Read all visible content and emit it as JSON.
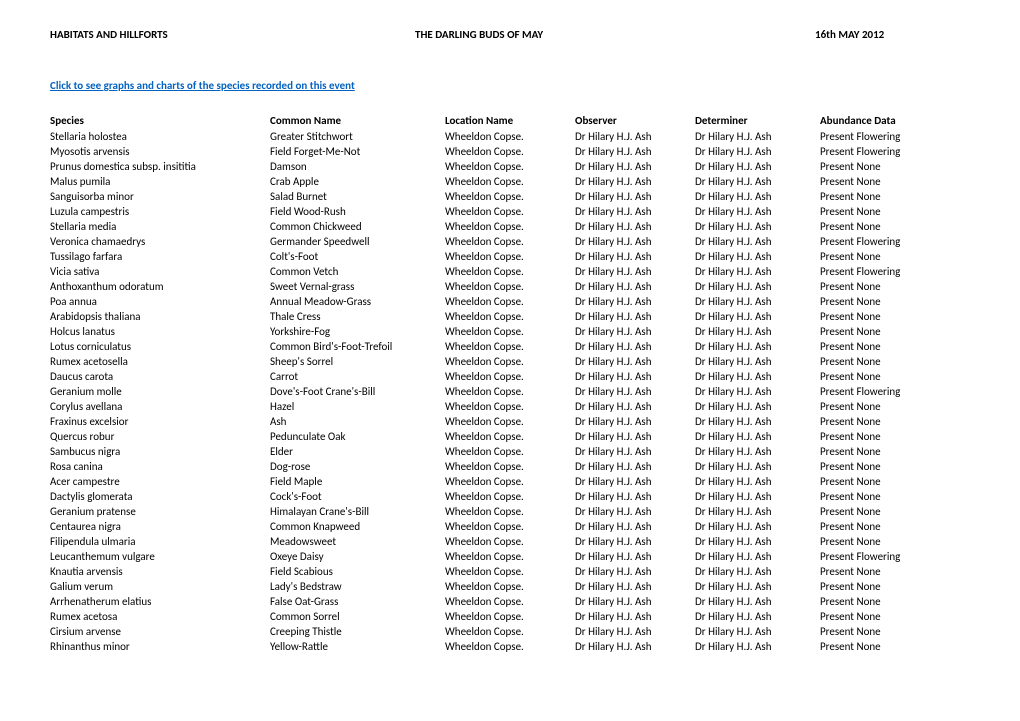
{
  "header": {
    "left": "HABITATS AND HILLFORTS",
    "middle": "THE DARLING BUDS OF MAY",
    "right": "16th MAY  2012"
  },
  "link_text": "Click to see graphs and charts of the species recorded on this event",
  "columns": [
    "Species",
    "Common Name",
    "Location Name",
    "Observer",
    "Determiner",
    "Abundance Data"
  ],
  "rows": [
    [
      "Stellaria holostea",
      "Greater Stitchwort",
      "Wheeldon Copse.",
      "Dr Hilary H.J. Ash",
      "Dr Hilary H.J. Ash",
      "Present Flowering"
    ],
    [
      "Myosotis arvensis",
      "Field Forget-Me-Not",
      "Wheeldon Copse.",
      "Dr Hilary H.J. Ash",
      "Dr Hilary H.J. Ash",
      "Present Flowering"
    ],
    [
      "Prunus domestica subsp. insititia",
      "Damson",
      "Wheeldon Copse.",
      "Dr Hilary H.J. Ash",
      "Dr Hilary H.J. Ash",
      "Present None"
    ],
    [
      "Malus pumila",
      "Crab Apple",
      "Wheeldon Copse.",
      "Dr Hilary H.J. Ash",
      "Dr Hilary H.J. Ash",
      "Present None"
    ],
    [
      "Sanguisorba minor",
      "Salad Burnet",
      "Wheeldon Copse.",
      "Dr Hilary H.J. Ash",
      "Dr Hilary H.J. Ash",
      "Present None"
    ],
    [
      "Luzula campestris",
      "Field Wood-Rush",
      "Wheeldon Copse.",
      "Dr Hilary H.J. Ash",
      "Dr Hilary H.J. Ash",
      "Present None"
    ],
    [
      "Stellaria media",
      "Common Chickweed",
      "Wheeldon Copse.",
      "Dr Hilary H.J. Ash",
      "Dr Hilary H.J. Ash",
      "Present None"
    ],
    [
      "Veronica chamaedrys",
      "Germander Speedwell",
      "Wheeldon Copse.",
      "Dr Hilary H.J. Ash",
      "Dr Hilary H.J. Ash",
      "Present Flowering"
    ],
    [
      "Tussilago farfara",
      "Colt's-Foot",
      "Wheeldon Copse.",
      "Dr Hilary H.J. Ash",
      "Dr Hilary H.J. Ash",
      "Present None"
    ],
    [
      "Vicia sativa",
      "Common Vetch",
      "Wheeldon Copse.",
      "Dr Hilary H.J. Ash",
      "Dr Hilary H.J. Ash",
      "Present Flowering"
    ],
    [
      "Anthoxanthum odoratum",
      "Sweet Vernal-grass",
      "Wheeldon Copse.",
      "Dr Hilary H.J. Ash",
      "Dr Hilary H.J. Ash",
      "Present None"
    ],
    [
      "Poa annua",
      "Annual Meadow-Grass",
      "Wheeldon Copse.",
      "Dr Hilary H.J. Ash",
      "Dr Hilary H.J. Ash",
      "Present None"
    ],
    [
      "Arabidopsis thaliana",
      "Thale Cress",
      "Wheeldon Copse.",
      "Dr Hilary H.J. Ash",
      "Dr Hilary H.J. Ash",
      "Present None"
    ],
    [
      "Holcus lanatus",
      "Yorkshire-Fog",
      "Wheeldon Copse.",
      "Dr Hilary H.J. Ash",
      "Dr Hilary H.J. Ash",
      "Present None"
    ],
    [
      "Lotus corniculatus",
      "Common Bird's-Foot-Trefoil",
      "Wheeldon Copse.",
      "Dr Hilary H.J. Ash",
      "Dr Hilary H.J. Ash",
      "Present None"
    ],
    [
      "Rumex acetosella",
      "Sheep's Sorrel",
      "Wheeldon Copse.",
      "Dr Hilary H.J. Ash",
      "Dr Hilary H.J. Ash",
      "Present None"
    ],
    [
      "Daucus carota",
      "Carrot",
      "Wheeldon Copse.",
      "Dr Hilary H.J. Ash",
      "Dr Hilary H.J. Ash",
      "Present None"
    ],
    [
      "Geranium molle",
      "Dove's-Foot Crane's-Bill",
      "Wheeldon Copse.",
      "Dr Hilary H.J. Ash",
      "Dr Hilary H.J. Ash",
      "Present Flowering"
    ],
    [
      "Corylus avellana",
      "Hazel",
      "Wheeldon Copse.",
      "Dr Hilary H.J. Ash",
      "Dr Hilary H.J. Ash",
      "Present None"
    ],
    [
      "Fraxinus excelsior",
      "Ash",
      "Wheeldon Copse.",
      "Dr Hilary H.J. Ash",
      "Dr Hilary H.J. Ash",
      "Present None"
    ],
    [
      "Quercus robur",
      "Pedunculate Oak",
      "Wheeldon Copse.",
      "Dr Hilary H.J. Ash",
      "Dr Hilary H.J. Ash",
      "Present None"
    ],
    [
      "Sambucus nigra",
      "Elder",
      "Wheeldon Copse.",
      "Dr Hilary H.J. Ash",
      "Dr Hilary H.J. Ash",
      "Present None"
    ],
    [
      "Rosa canina",
      "Dog-rose",
      "Wheeldon Copse.",
      "Dr Hilary H.J. Ash",
      "Dr Hilary H.J. Ash",
      "Present None"
    ],
    [
      "Acer campestre",
      "Field Maple",
      "Wheeldon Copse.",
      "Dr Hilary H.J. Ash",
      "Dr Hilary H.J. Ash",
      "Present None"
    ],
    [
      "Dactylis glomerata",
      "Cock's-Foot",
      "Wheeldon Copse.",
      "Dr Hilary H.J. Ash",
      "Dr Hilary H.J. Ash",
      "Present None"
    ],
    [
      "Geranium pratense",
      "Himalayan Crane's-Bill",
      "Wheeldon Copse.",
      "Dr Hilary H.J. Ash",
      "Dr Hilary H.J. Ash",
      "Present None"
    ],
    [
      "Centaurea nigra",
      "Common Knapweed",
      "Wheeldon Copse.",
      "Dr Hilary H.J. Ash",
      "Dr Hilary H.J. Ash",
      "Present None"
    ],
    [
      "Filipendula ulmaria",
      "Meadowsweet",
      "Wheeldon Copse.",
      "Dr Hilary H.J. Ash",
      "Dr Hilary H.J. Ash",
      "Present None"
    ],
    [
      "Leucanthemum vulgare",
      "Oxeye Daisy",
      "Wheeldon Copse.",
      "Dr Hilary H.J. Ash",
      "Dr Hilary H.J. Ash",
      "Present Flowering"
    ],
    [
      "Knautia arvensis",
      "Field Scabious",
      "Wheeldon Copse.",
      "Dr Hilary H.J. Ash",
      "Dr Hilary H.J. Ash",
      "Present None"
    ],
    [
      "Galium verum",
      "Lady's Bedstraw",
      "Wheeldon Copse.",
      "Dr Hilary H.J. Ash",
      "Dr Hilary H.J. Ash",
      "Present None"
    ],
    [
      "Arrhenatherum elatius",
      "False Oat-Grass",
      "Wheeldon Copse.",
      "Dr Hilary H.J. Ash",
      "Dr Hilary H.J. Ash",
      "Present None"
    ],
    [
      "Rumex acetosa",
      "Common Sorrel",
      "Wheeldon Copse.",
      "Dr Hilary H.J. Ash",
      "Dr Hilary H.J. Ash",
      "Present None"
    ],
    [
      "Cirsium arvense",
      "Creeping Thistle",
      "Wheeldon Copse.",
      "Dr Hilary H.J. Ash",
      "Dr Hilary H.J. Ash",
      "Present None"
    ],
    [
      "Rhinanthus minor",
      "Yellow-Rattle",
      "Wheeldon Copse.",
      "Dr Hilary H.J. Ash",
      "Dr Hilary H.J. Ash",
      "Present None"
    ]
  ]
}
